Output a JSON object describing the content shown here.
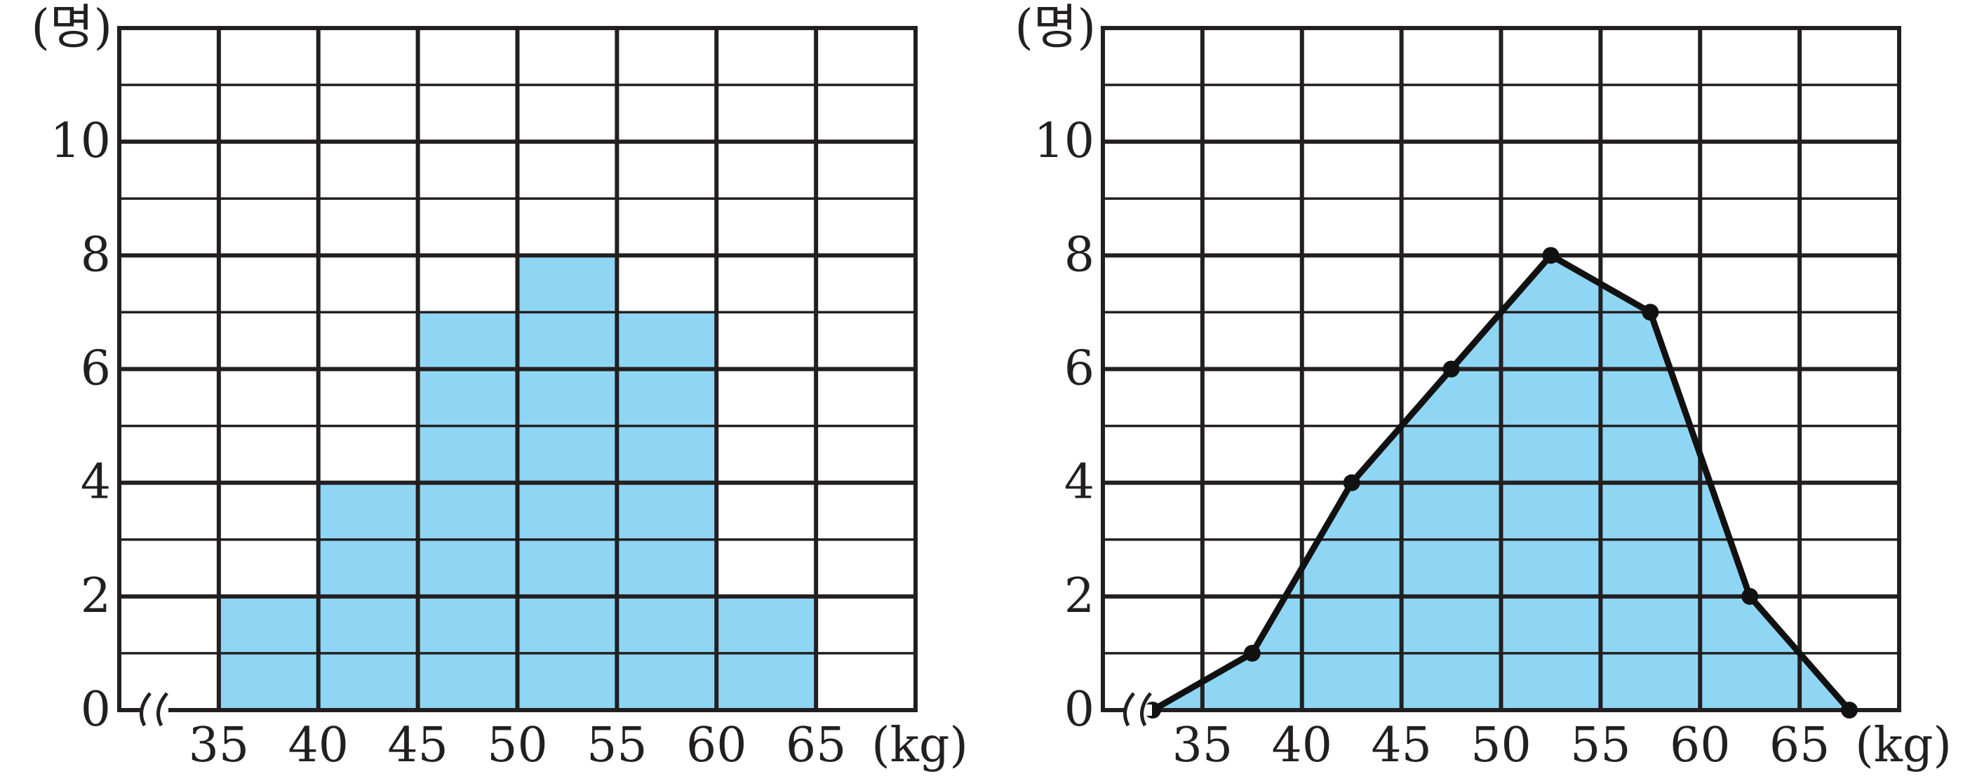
{
  "chart_data": [
    {
      "type": "bar",
      "subtype": "histogram",
      "x_unit": "(kg)",
      "y_unit": "(명)",
      "bin_edges": [
        35,
        40,
        45,
        50,
        55,
        60,
        65
      ],
      "x_tick_labels": [
        "35",
        "40",
        "45",
        "50",
        "55",
        "60",
        "65"
      ],
      "y_tick_labels": [
        "0",
        "2",
        "4",
        "6",
        "8",
        "10"
      ],
      "values": [
        2,
        4,
        7,
        8,
        7,
        2
      ],
      "xlim": [
        30,
        70
      ],
      "ylim": [
        0,
        12
      ],
      "grid": true,
      "axis_break": true,
      "colors": {
        "fill": "#8fd6f5",
        "line": "#231f20"
      }
    },
    {
      "type": "line",
      "subtype": "frequency-polygon",
      "x_unit": "(kg)",
      "y_unit": "(명)",
      "x_tick_labels": [
        "35",
        "40",
        "45",
        "50",
        "55",
        "60",
        "65"
      ],
      "y_tick_labels": [
        "0",
        "2",
        "4",
        "6",
        "8",
        "10"
      ],
      "x": [
        32.5,
        37.5,
        42.5,
        47.5,
        52.5,
        57.5,
        62.5,
        67.5
      ],
      "y": [
        0,
        1,
        4,
        6,
        8,
        7,
        2,
        0
      ],
      "xlim": [
        30,
        70
      ],
      "ylim": [
        0,
        12
      ],
      "grid": true,
      "axis_break": true,
      "colors": {
        "fill": "#8fd6f5",
        "line": "#111111"
      }
    }
  ]
}
